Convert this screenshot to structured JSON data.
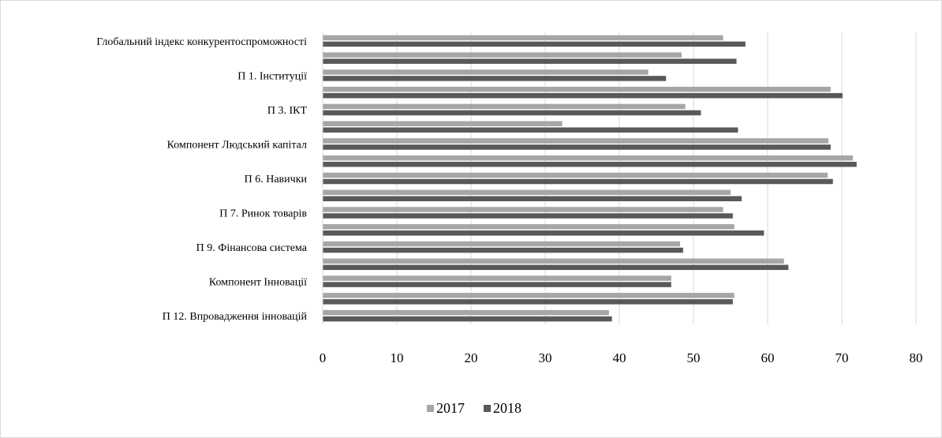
{
  "colors": {
    "s2017": "#a6a6a6",
    "s2018": "#595959",
    "grid": "#d9d9d9",
    "axis": "#d9d9d9"
  },
  "chart_data": {
    "type": "bar",
    "orientation": "horizontal",
    "categories": [
      "Глобальний індекс конкурентоспроможності",
      "",
      "П 1.  Інституції",
      "",
      "П 3.  ІКТ",
      "",
      "Компонент Людський капітал",
      "",
      "П 6. Навички",
      "",
      "П 7. Ринок товарів",
      "",
      "П 9. Фінансова система",
      "",
      "Компонент Інновації",
      "",
      "П 12. Впровадження інновацій"
    ],
    "series": [
      {
        "name": "2017",
        "values": [
          54,
          48.4,
          43.9,
          68.5,
          48.9,
          32.3,
          68.2,
          71.5,
          68.1,
          55,
          54,
          55.5,
          48.2,
          62.2,
          47,
          55.5,
          38.6
        ]
      },
      {
        "name": "2018",
        "values": [
          57,
          55.8,
          46.3,
          70.1,
          51,
          56,
          68.5,
          72,
          68.8,
          56.5,
          55.3,
          59.5,
          48.6,
          62.8,
          47,
          55.3,
          39
        ]
      }
    ],
    "x_ticks": [
      "0",
      "10",
      "20",
      "30",
      "40",
      "50",
      "60",
      "70",
      "80"
    ],
    "xlim": [
      0,
      80
    ],
    "grid": true,
    "legend_position": "bottom-center"
  }
}
